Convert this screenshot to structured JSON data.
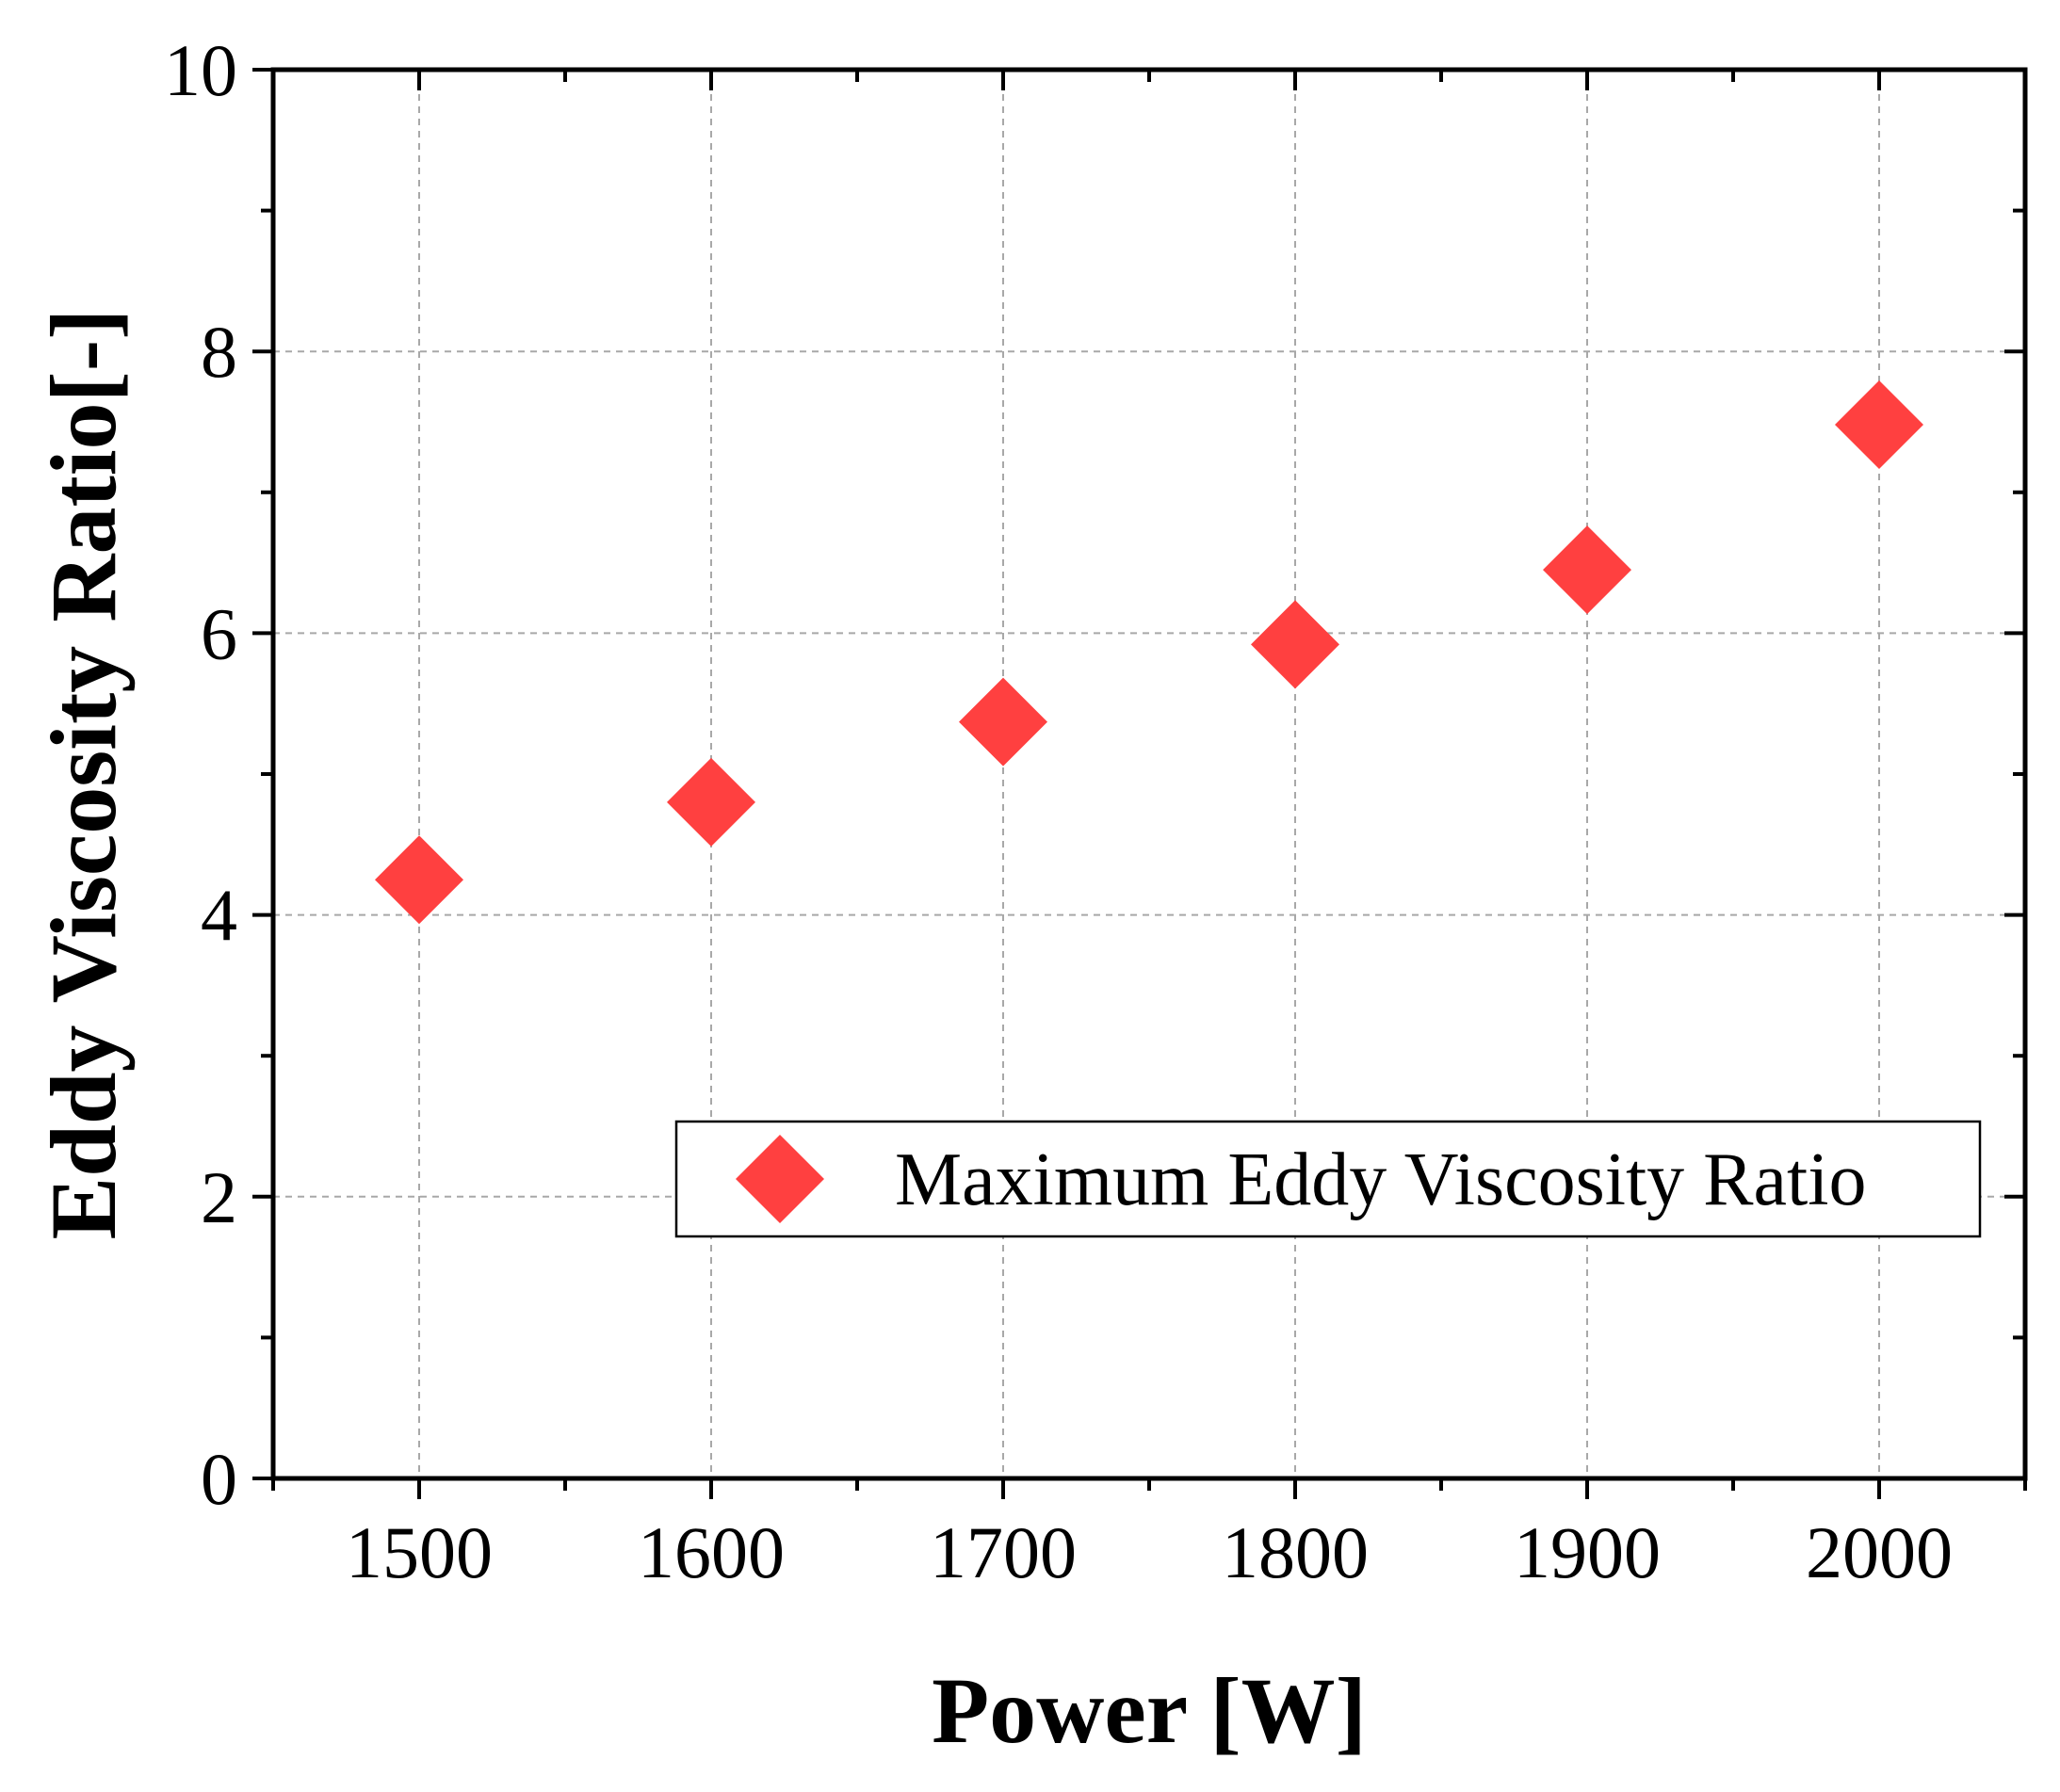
{
  "chart_data": {
    "type": "scatter",
    "title": "",
    "xlabel": "Power [W]",
    "ylabel": "Eddy Viscosity Ratio[-]",
    "xlim": [
      1450,
      2050
    ],
    "ylim": [
      0,
      10
    ],
    "x_ticks": [
      1500,
      1600,
      1700,
      1800,
      1900,
      2000
    ],
    "x_tick_labels": [
      "1500",
      "1600",
      "1700",
      "1800",
      "1900",
      "2000"
    ],
    "y_ticks": [
      0,
      2,
      4,
      6,
      8,
      10
    ],
    "y_tick_labels": [
      "0",
      "2",
      "4",
      "6",
      "8",
      "10"
    ],
    "grid": true,
    "legend_position": "lower-right",
    "series": [
      {
        "name": "Maximum Eddy Viscosity Ratio",
        "marker": "diamond",
        "color": "#ff4040",
        "x": [
          1500,
          1600,
          1700,
          1800,
          1900,
          2000
        ],
        "y": [
          4.25,
          4.8,
          5.37,
          5.92,
          6.45,
          7.48
        ]
      }
    ]
  }
}
